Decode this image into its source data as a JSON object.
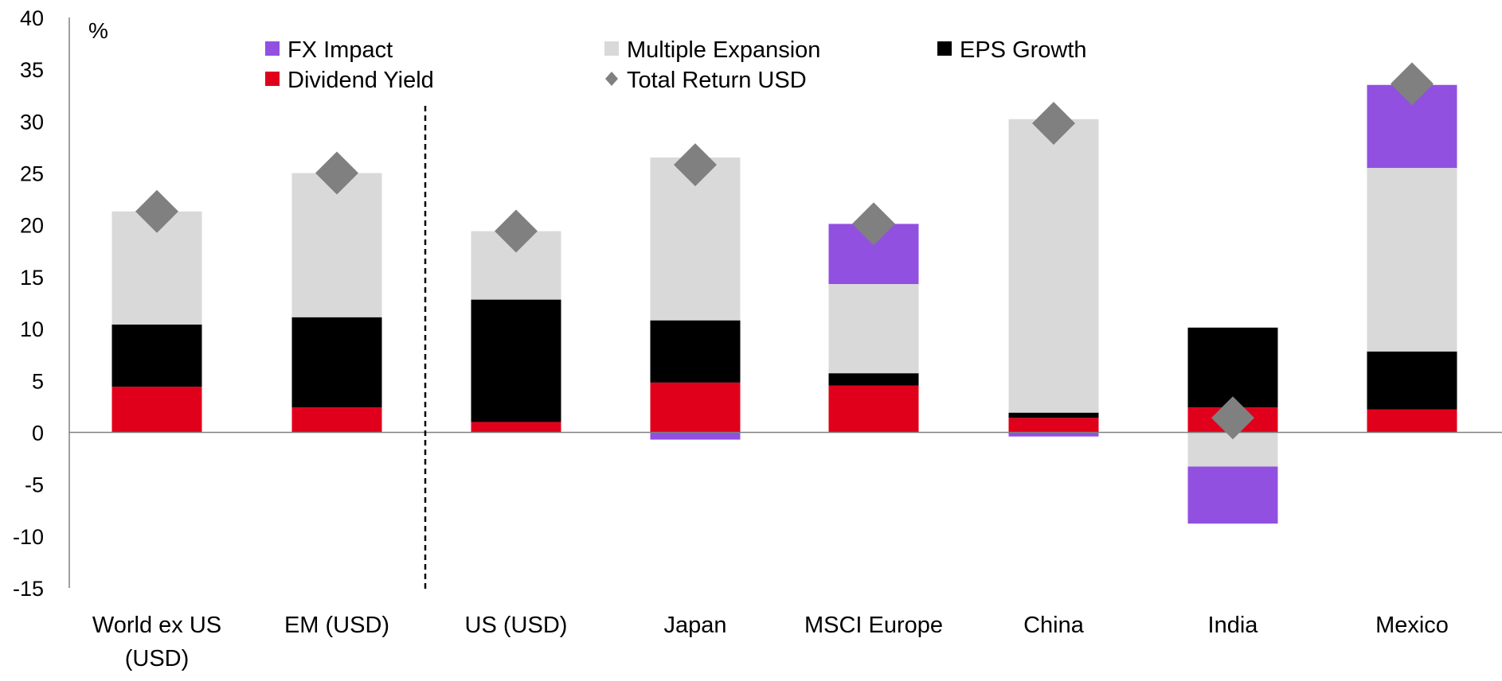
{
  "chart_data": {
    "type": "bar",
    "stacked": true,
    "unit_label": "%",
    "categories": [
      [
        "World ex US",
        "(USD)"
      ],
      [
        "EM (USD)"
      ],
      [
        "US (USD)"
      ],
      [
        "Japan"
      ],
      [
        "MSCI Europe"
      ],
      [
        "China"
      ],
      [
        "India"
      ],
      [
        "Mexico"
      ]
    ],
    "ylim": [
      -15,
      40
    ],
    "yticks": [
      40,
      35,
      30,
      25,
      20,
      15,
      10,
      5,
      0,
      -5,
      -10,
      -15
    ],
    "grid": false,
    "legend_position": "top",
    "divider_after_category": 2,
    "series": [
      {
        "name": "Dividend Yield",
        "color": "#E0001B",
        "values": [
          4.4,
          2.4,
          1.0,
          4.8,
          4.5,
          1.4,
          2.4,
          2.2
        ]
      },
      {
        "name": "EPS Growth",
        "color": "#000000",
        "values": [
          6.0,
          8.7,
          11.8,
          6.0,
          1.2,
          0.5,
          7.7,
          5.6
        ]
      },
      {
        "name": "Multiple Expansion",
        "color": "#D9D9D9",
        "values": [
          10.9,
          13.9,
          6.6,
          15.7,
          8.6,
          28.3,
          -3.3,
          17.7
        ]
      },
      {
        "name": "FX Impact",
        "color": "#9150E0",
        "values": [
          0,
          0,
          0,
          -0.7,
          5.8,
          -0.4,
          -5.5,
          8.0
        ]
      }
    ],
    "total": {
      "name": "Total Return USD",
      "color": "#808080",
      "marker": "diamond",
      "values": [
        21.3,
        25.0,
        19.4,
        25.8,
        20.1,
        29.8,
        1.4,
        33.6
      ]
    },
    "legend": [
      {
        "label": "FX Impact",
        "color": "#9150E0",
        "marker": "square"
      },
      {
        "label": "Multiple Expansion",
        "color": "#D9D9D9",
        "marker": "square"
      },
      {
        "label": "EPS Growth",
        "color": "#000000",
        "marker": "square"
      },
      {
        "label": "Dividend Yield",
        "color": "#E0001B",
        "marker": "square"
      },
      {
        "label": "Total Return USD",
        "color": "#808080",
        "marker": "diamond"
      }
    ]
  }
}
